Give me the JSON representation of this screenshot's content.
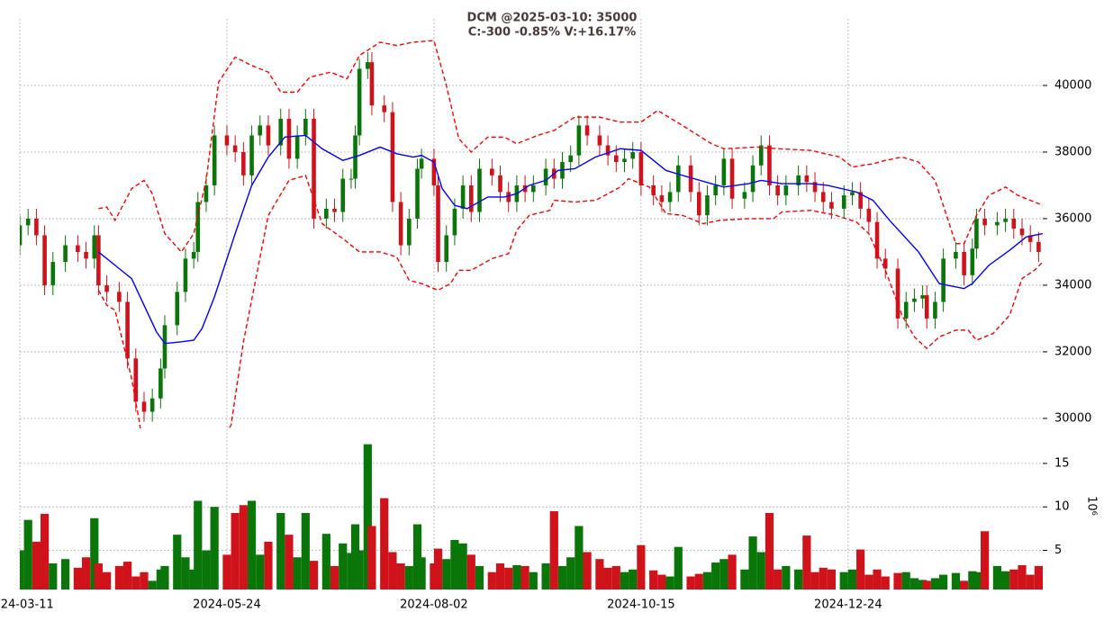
{
  "chart_data": {
    "type": "candlestick",
    "title": "DCM @2025-03-10: 35000",
    "subtitle": "C:-300 -0.85% V:+16.17%",
    "up_color": "#0a760a",
    "down_color": "#d0121b",
    "grid": true,
    "xlim": [
      0,
      247
    ],
    "xticks": [
      {
        "value": 0,
        "label": "2024-03-11"
      },
      {
        "value": 50,
        "label": "2024-05-24"
      },
      {
        "value": 100,
        "label": "2024-08-02"
      },
      {
        "value": 150,
        "label": "2024-10-15"
      },
      {
        "value": 200,
        "label": "2024-12-24"
      }
    ],
    "ylim": [
      29700,
      42000
    ],
    "yticks": [
      30000,
      32000,
      34000,
      36000,
      38000,
      40000
    ],
    "volume_ylim": [
      0.5,
      18.3
    ],
    "volume_yticks": [
      5,
      10,
      15
    ],
    "volume_label": "10⁶",
    "x": [
      0,
      2,
      4,
      6,
      8,
      11,
      14,
      16,
      18,
      19,
      21,
      24,
      26,
      28,
      30,
      32,
      34,
      35,
      38,
      40,
      42,
      43,
      45,
      47,
      50,
      52,
      54,
      56,
      58,
      60,
      63,
      65,
      67,
      69,
      71,
      74,
      76,
      78,
      80,
      81,
      82,
      84,
      85,
      88,
      90,
      92,
      94,
      96,
      97,
      100,
      101,
      103,
      105,
      107,
      109,
      111,
      114,
      116,
      118,
      120,
      122,
      124,
      127,
      129,
      131,
      133,
      135,
      137,
      140,
      142,
      144,
      146,
      148,
      150,
      153,
      155,
      157,
      159,
      162,
      164,
      166,
      168,
      170,
      172,
      175,
      177,
      179,
      181,
      183,
      185,
      188,
      190,
      192,
      194,
      196,
      199,
      201,
      203,
      205,
      207,
      209,
      212,
      214,
      216,
      218,
      219,
      221,
      223,
      226,
      228,
      230,
      231,
      233,
      236,
      238,
      240,
      242,
      244,
      246
    ],
    "open": [
      35200,
      35800,
      36000,
      35500,
      34000,
      34700,
      35200,
      35000,
      34800,
      35500,
      34000,
      33800,
      33500,
      31800,
      30500,
      30200,
      30600,
      31500,
      32800,
      33800,
      34800,
      35000,
      36500,
      37000,
      38500,
      38200,
      38000,
      37300,
      38500,
      38800,
      38200,
      39000,
      37800,
      38500,
      39000,
      36000,
      36300,
      36200,
      37200,
      37200,
      38500,
      40500,
      40700,
      39400,
      39200,
      36500,
      35200,
      36000,
      37500,
      37800,
      37000,
      34700,
      35500,
      36300,
      37000,
      36200,
      37500,
      37300,
      36800,
      36500,
      37000,
      36800,
      37000,
      37500,
      37200,
      37700,
      37900,
      38800,
      38500,
      38200,
      37900,
      37700,
      37800,
      38000,
      37000,
      36700,
      36500,
      36800,
      37600,
      36800,
      36100,
      36700,
      37000,
      37800,
      36600,
      36800,
      37600,
      38200,
      37000,
      36700,
      37000,
      37300,
      37100,
      36800,
      36500,
      36300,
      36700,
      36800,
      36300,
      35900,
      34800,
      34500,
      33000,
      33500,
      33600,
      33700,
      33000,
      33500,
      34800,
      35000,
      34300,
      35100,
      36000,
      35800,
      35900,
      36000,
      35700,
      35500,
      35300
    ],
    "high": [
      36100,
      36300,
      36300,
      35800,
      35000,
      35500,
      35500,
      35300,
      35800,
      35800,
      34300,
      34100,
      33800,
      32100,
      30800,
      30900,
      31800,
      33100,
      34100,
      35100,
      35300,
      36800,
      37300,
      38800,
      38800,
      38500,
      38300,
      38800,
      39100,
      39100,
      39300,
      39300,
      38800,
      39300,
      39300,
      36600,
      36600,
      37500,
      37500,
      38800,
      40800,
      41000,
      41000,
      39700,
      39500,
      36800,
      36300,
      37800,
      38100,
      38100,
      37300,
      35800,
      36600,
      37300,
      37300,
      37800,
      37800,
      37600,
      37100,
      37300,
      37300,
      37300,
      37800,
      37800,
      38000,
      38200,
      39100,
      39100,
      38800,
      38500,
      38200,
      38100,
      38300,
      38300,
      37300,
      37000,
      37100,
      37900,
      37900,
      37100,
      37000,
      37300,
      38100,
      38100,
      37100,
      37900,
      38500,
      38500,
      37300,
      37300,
      37600,
      37600,
      37400,
      37100,
      36800,
      37000,
      37100,
      37100,
      36600,
      36200,
      35100,
      34800,
      33800,
      33900,
      34000,
      34000,
      33800,
      35100,
      35300,
      35300,
      35400,
      36300,
      36300,
      36200,
      36300,
      36300,
      36000,
      35800,
      35600
    ],
    "low": [
      34900,
      35500,
      35200,
      33700,
      33700,
      34400,
      34700,
      34500,
      34500,
      33700,
      33500,
      33200,
      31500,
      30200,
      29900,
      29900,
      30300,
      31200,
      32500,
      33500,
      34500,
      34700,
      36200,
      36700,
      37900,
      37700,
      37000,
      37000,
      38200,
      37900,
      37900,
      37500,
      37500,
      38200,
      35700,
      35700,
      35900,
      35900,
      36900,
      36900,
      38200,
      40200,
      39100,
      38900,
      36200,
      34900,
      34900,
      35700,
      37200,
      36700,
      34400,
      34400,
      35200,
      36000,
      35900,
      35900,
      37000,
      36500,
      36200,
      36200,
      36500,
      36500,
      36700,
      36900,
      36900,
      37400,
      37600,
      38200,
      37900,
      37600,
      37400,
      37400,
      37500,
      36700,
      36400,
      36200,
      36200,
      36500,
      36500,
      35800,
      35800,
      36400,
      36700,
      36300,
      36300,
      36500,
      37300,
      36700,
      36400,
      36400,
      36700,
      36800,
      36500,
      36200,
      36000,
      36000,
      36400,
      36000,
      35600,
      34500,
      34200,
      32700,
      32700,
      33200,
      33300,
      32700,
      32700,
      33200,
      34500,
      34000,
      34000,
      34800,
      35500,
      35500,
      35600,
      35400,
      35200,
      35000,
      34700
    ],
    "close": [
      35800,
      36000,
      35500,
      34000,
      34700,
      35200,
      35000,
      34800,
      35500,
      34000,
      33800,
      33500,
      31800,
      30500,
      30200,
      30600,
      31500,
      32800,
      33800,
      34800,
      35000,
      36500,
      37000,
      38500,
      38200,
      38000,
      37300,
      38500,
      38800,
      38200,
      39000,
      37800,
      38500,
      39000,
      36000,
      36300,
      36200,
      37200,
      37200,
      38500,
      40500,
      40700,
      39400,
      39200,
      36500,
      35200,
      36000,
      37500,
      37800,
      37000,
      34700,
      35500,
      36300,
      37000,
      36200,
      37500,
      37300,
      36800,
      36500,
      37000,
      36800,
      37000,
      37500,
      37200,
      37700,
      37900,
      38800,
      38500,
      38200,
      37900,
      37700,
      37800,
      38000,
      37000,
      36700,
      36500,
      36800,
      37600,
      36800,
      36100,
      36700,
      37000,
      37800,
      36600,
      36800,
      37600,
      38200,
      37000,
      36700,
      37000,
      37300,
      37100,
      36800,
      36500,
      36300,
      36700,
      36800,
      36300,
      35900,
      34800,
      34500,
      33000,
      33500,
      33600,
      33700,
      33000,
      33500,
      34800,
      35000,
      34300,
      35100,
      36000,
      35800,
      35900,
      36000,
      35700,
      35500,
      35300,
      35000
    ],
    "volume": [
      5.0,
      8.5,
      6.0,
      9.2,
      3.5,
      4.0,
      3.0,
      4.2,
      8.7,
      3.5,
      2.5,
      3.2,
      3.7,
      2.0,
      2.5,
      1.5,
      2.8,
      3.2,
      6.8,
      4.2,
      2.8,
      10.7,
      5.0,
      10.0,
      4.5,
      9.3,
      10.2,
      10.7,
      4.5,
      6.0,
      9.3,
      6.8,
      4.2,
      9.3,
      3.8,
      6.9,
      3.2,
      5.8,
      4.7,
      8.0,
      5.0,
      17.2,
      7.8,
      11.0,
      4.8,
      3.5,
      3.2,
      8.0,
      4.2,
      3.5,
      5.2,
      4.0,
      6.2,
      5.8,
      4.5,
      3.2,
      2.5,
      3.5,
      3.0,
      3.3,
      3.2,
      2.5,
      3.5,
      9.5,
      3.2,
      4.2,
      7.8,
      4.8,
      4.0,
      3.0,
      3.2,
      2.5,
      2.8,
      5.6,
      2.7,
      2.2,
      2.0,
      5.4,
      2.0,
      2.3,
      2.5,
      3.6,
      4.0,
      4.5,
      2.8,
      6.6,
      4.8,
      9.3,
      2.8,
      3.2,
      2.8,
      6.7,
      2.5,
      3.0,
      2.8,
      2.5,
      2.8,
      5.1,
      2.2,
      2.8,
      2.0,
      2.4,
      2.5,
      1.8,
      1.6,
      1.5,
      1.8,
      2.2,
      2.4,
      1.5,
      2.6,
      2.5,
      7.2,
      3.2,
      2.6,
      2.8,
      3.3,
      2.2,
      3.2
    ],
    "bands": [
      {
        "color": "#ff0000",
        "style": "dashed",
        "x": [
          19,
          21,
          23,
          27,
          30,
          32,
          35,
          39,
          42,
          45,
          48,
          52,
          56,
          60,
          63,
          67,
          70,
          75,
          79,
          82,
          87,
          91,
          95,
          100,
          103,
          106,
          109,
          113,
          117,
          120,
          125,
          129,
          134,
          140,
          145,
          150,
          154,
          160,
          167,
          170,
          178,
          183,
          191,
          198,
          201,
          206,
          209,
          213,
          217,
          221,
          226,
          228,
          231,
          234,
          238,
          241,
          247
        ],
        "values": [
          36300,
          36350,
          35950,
          36900,
          37150,
          36750,
          35550,
          35000,
          35550,
          37150,
          40100,
          40850,
          40600,
          40400,
          39800,
          39800,
          40250,
          40400,
          40200,
          40900,
          41300,
          41200,
          41300,
          41350,
          40000,
          38400,
          38000,
          38450,
          38450,
          38250,
          38500,
          38650,
          39050,
          39050,
          38900,
          38900,
          39250,
          38800,
          38250,
          38100,
          38150,
          38100,
          38050,
          37850,
          37550,
          37650,
          37750,
          37850,
          37700,
          37150,
          35250,
          35250,
          36100,
          36700,
          36950,
          36700,
          36400
        ]
      },
      {
        "color": "#0000ff",
        "style": "solid",
        "x": [
          19,
          23,
          27,
          33,
          35,
          39,
          42,
          44,
          47,
          52,
          56,
          60,
          64,
          69,
          73,
          78,
          82,
          87,
          91,
          95,
          97,
          100,
          102,
          105,
          108,
          113,
          117,
          120,
          123,
          127,
          130,
          134,
          139,
          145,
          150,
          156,
          160,
          167,
          170,
          176,
          179,
          184,
          191,
          195,
          202,
          206,
          210,
          217,
          222,
          228,
          230,
          234,
          239,
          243,
          247
        ],
        "values": [
          35000,
          34600,
          34200,
          32600,
          32250,
          32300,
          32350,
          32700,
          33650,
          35550,
          37000,
          37850,
          38450,
          38500,
          38100,
          37750,
          37900,
          38150,
          37950,
          37850,
          37900,
          37700,
          36900,
          36400,
          36300,
          36650,
          36650,
          36750,
          37000,
          37150,
          37450,
          37500,
          37850,
          38100,
          38050,
          37450,
          37300,
          37050,
          36950,
          37050,
          37150,
          37050,
          37050,
          37000,
          36800,
          36550,
          35950,
          35000,
          34050,
          33900,
          34050,
          34600,
          35050,
          35450,
          35550
        ]
      },
      {
        "color": "#ff0000",
        "style": "dashed",
        "x": [
          19,
          21,
          23,
          27,
          29,
          30,
          39,
          45,
          51,
          54,
          57,
          60,
          65,
          69,
          73,
          78,
          82,
          87,
          91,
          94,
          97,
          101,
          104,
          106,
          109,
          114,
          118,
          120,
          123,
          128,
          129,
          134,
          139,
          145,
          147,
          152,
          156,
          160,
          165,
          169,
          176,
          182,
          184,
          191,
          197,
          202,
          205,
          209,
          213,
          216,
          219,
          222,
          226,
          229,
          231,
          235,
          239,
          242,
          245,
          247
        ],
        "values": [
          33850,
          33400,
          33250,
          31200,
          29800,
          28500,
          27400,
          28500,
          29800,
          32300,
          34200,
          36100,
          37150,
          37300,
          35850,
          35400,
          35000,
          35000,
          34850,
          34150,
          34050,
          33850,
          34050,
          34450,
          34450,
          34800,
          34950,
          35650,
          36100,
          36250,
          36550,
          36500,
          36550,
          36950,
          37200,
          36950,
          36150,
          36100,
          35850,
          35950,
          36000,
          36000,
          36200,
          36250,
          36100,
          35900,
          35550,
          34450,
          33100,
          32450,
          32100,
          32450,
          32650,
          32650,
          32350,
          32550,
          33100,
          34200,
          34450,
          34700
        ]
      }
    ]
  }
}
